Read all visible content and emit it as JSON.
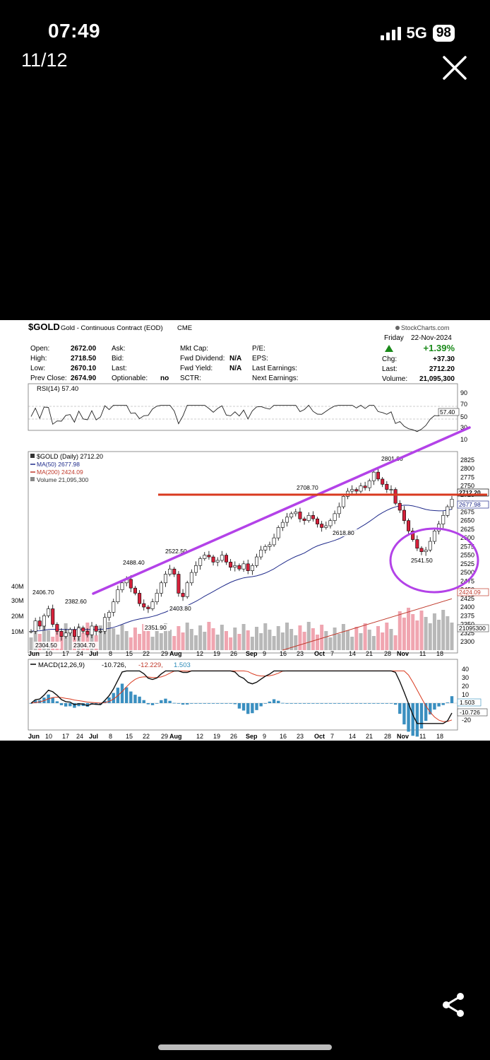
{
  "status_bar": {
    "time": "07:49",
    "network": "5G",
    "battery": "98"
  },
  "viewer": {
    "counter": "11/12",
    "close_icon": "close-icon",
    "share_icon": "share-icon"
  },
  "chart": {
    "symbol": "$GOLD",
    "title": "Gold - Continuous Contract (EOD)",
    "exchange": "CME",
    "watermark": "StockCharts.com",
    "day": "Friday",
    "date": "22-Nov-2024",
    "change_pct": "+1.39%",
    "quote": {
      "open_label": "Open:",
      "open": "2672.00",
      "high_label": "High:",
      "high": "2718.50",
      "low_label": "Low:",
      "low": "2670.10",
      "prev_label": "Prev Close:",
      "prev": "2674.90",
      "ask_label": "Ask:",
      "bid_label": "Bid:",
      "last_label": "Last:",
      "optionable_label": "Optionable:",
      "optionable": "no",
      "mktcap_label": "Mkt Cap:",
      "fwd_div_label": "Fwd Dividend:",
      "fwd_div": "N/A",
      "fwd_yield_label": "Fwd Yield:",
      "fwd_yield": "N/A",
      "sctr_label": "SCTR:",
      "pe_label": "P/E:",
      "eps_label": "EPS:",
      "last_earn_label": "Last Earnings:",
      "next_earn_label": "Next Earnings:",
      "chg_label": "Chg:",
      "chg": "+37.30",
      "last2_label": "Last:",
      "last": "2712.20",
      "volume_label": "Volume:",
      "volume": "21,095,300"
    },
    "rsi": {
      "label": "RSI(14) 57.40",
      "value_tag": "57.40",
      "axis": [
        "90",
        "70",
        "50",
        "30",
        "10"
      ]
    },
    "price_legend": {
      "main": "$GOLD (Daily) 2712.20",
      "ma50": "MA(50) 2677.98",
      "ma200": "MA(200) 2424.09",
      "volume": "Volume 21,095,300"
    },
    "price_axis": [
      "2825",
      "2800",
      "2775",
      "2750",
      "2725",
      "2700",
      "2675",
      "2650",
      "2625",
      "2600",
      "2575",
      "2550",
      "2525",
      "2500",
      "2475",
      "2450",
      "2425",
      "2400",
      "2375",
      "2350",
      "2325",
      "2300"
    ],
    "price_tags": {
      "last": "2712.20",
      "ma50": "2677.98",
      "ma200": "2424.09",
      "volume": "21095300"
    },
    "volume_axis": [
      "40M",
      "30M",
      "20M",
      "10M"
    ],
    "annotations": [
      "2406.70",
      "2382.60",
      "2304.50",
      "2304.70",
      "2488.40",
      "2522.50",
      "2351.90",
      "2403.80",
      "2708.70",
      "2618.80",
      "2801.80",
      "2541.50"
    ],
    "x_axis": [
      "Jun",
      "10",
      "17",
      "24",
      "Jul",
      "8",
      "15",
      "22",
      "29",
      "Aug",
      "12",
      "19",
      "26",
      "Sep",
      "9",
      "16",
      "23",
      "Oct",
      "7",
      "14",
      "21",
      "28",
      "Nov",
      "11",
      "18"
    ],
    "macd": {
      "label": "MACD(12,26,9)",
      "v1": "-10.726,",
      "v2": "-12.229,",
      "v3": "1.503",
      "axis": [
        "40",
        "30",
        "20",
        "10",
        "-10",
        "-20"
      ],
      "tag_hist": "1.503",
      "tag_macd": "-10.726"
    },
    "overlays": {
      "trendline_color": "#b342e8",
      "resistance_color": "#d93a1f",
      "circle_color": "#b342e8"
    },
    "chart_data": {
      "type": "candlestick",
      "start_price": 2330,
      "closes": [
        2330,
        2360,
        2345,
        2375,
        2395,
        2350,
        2330,
        2315,
        2325,
        2335,
        2315,
        2340,
        2330,
        2320,
        2345,
        2330,
        2330,
        2370,
        2385,
        2415,
        2450,
        2470,
        2480,
        2455,
        2440,
        2410,
        2400,
        2395,
        2415,
        2440,
        2470,
        2495,
        2510,
        2495,
        2440,
        2430,
        2470,
        2500,
        2520,
        2540,
        2550,
        2545,
        2530,
        2535,
        2550,
        2530,
        2515,
        2520,
        2510,
        2525,
        2505,
        2520,
        2545,
        2565,
        2575,
        2580,
        2600,
        2630,
        2645,
        2660,
        2670,
        2675,
        2655,
        2650,
        2665,
        2655,
        2640,
        2630,
        2635,
        2650,
        2670,
        2690,
        2720,
        2735,
        2740,
        2735,
        2750,
        2745,
        2765,
        2790,
        2770,
        2755,
        2740,
        2740,
        2700,
        2680,
        2650,
        2620,
        2595,
        2570,
        2560,
        2565,
        2590,
        2620,
        2640,
        2665,
        2690,
        2712
      ],
      "ma50_axis_range": [
        2300,
        2825
      ],
      "rsi_last": 57.4,
      "macd_last": -10.726,
      "signal_last": -12.229,
      "hist_last": 1.503
    }
  }
}
